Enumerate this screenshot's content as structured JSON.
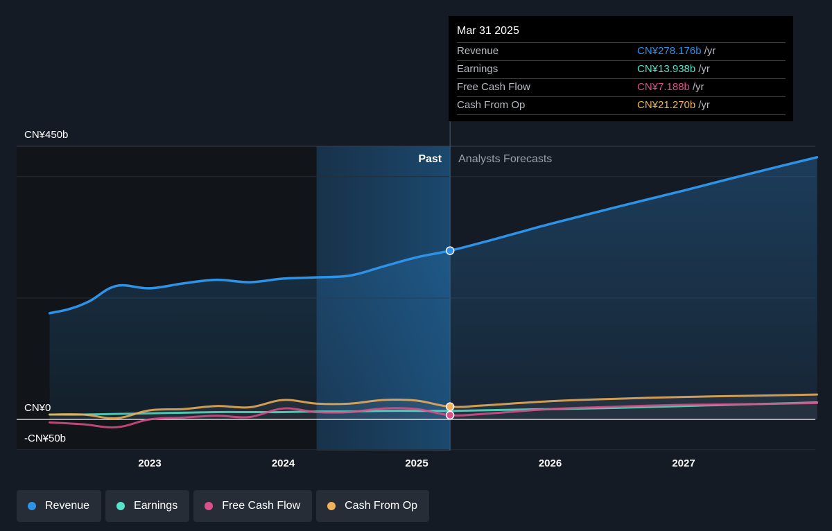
{
  "colors": {
    "background": "#151b24",
    "revenue": "#2e93e6",
    "earnings": "#56e3c8",
    "free_cash_flow": "#d9508a",
    "cash_from_op": "#f0b25a"
  },
  "chart_data": {
    "type": "line",
    "x_axis_ticks": [
      "2023",
      "2024",
      "2025",
      "2026",
      "2027"
    ],
    "y_axis_ticks": [
      "CN¥450b",
      "CN¥0",
      "-CN¥50b"
    ],
    "ylim": [
      -50,
      450
    ],
    "xlim": [
      2022.2,
      2028.0
    ],
    "divider_x": 2025.25,
    "forecast_start_band": 2024.25,
    "region_labels": {
      "past": "Past",
      "forecast": "Analysts Forecasts"
    },
    "grid": true,
    "legend_position": "bottom-left",
    "series": [
      {
        "name": "Revenue",
        "color_key": "revenue",
        "x": [
          2022.25,
          2022.4,
          2022.55,
          2022.75,
          2023.0,
          2023.25,
          2023.5,
          2023.75,
          2024.0,
          2024.25,
          2024.5,
          2024.75,
          2025.0,
          2025.25,
          2025.5,
          2025.75,
          2026.0,
          2026.5,
          2027.0,
          2027.5,
          2028.0
        ],
        "y": [
          175,
          182,
          195,
          220,
          216,
          224,
          230,
          226,
          232,
          234,
          237,
          252,
          267,
          278,
          292,
          307,
          322,
          350,
          377,
          405,
          432
        ]
      },
      {
        "name": "Earnings",
        "color_key": "earnings",
        "x": [
          2022.25,
          2022.5,
          2022.75,
          2023.0,
          2023.25,
          2023.5,
          2023.75,
          2024.0,
          2024.25,
          2024.5,
          2024.75,
          2025.0,
          2025.25,
          2025.5,
          2026.0,
          2026.5,
          2027.0,
          2027.5,
          2028.0
        ],
        "y": [
          8,
          8,
          9,
          10,
          11,
          12,
          12,
          12,
          13,
          13,
          14,
          14,
          14,
          15,
          17,
          19,
          22,
          25,
          28
        ]
      },
      {
        "name": "Free Cash Flow",
        "color_key": "free_cash_flow",
        "x": [
          2022.25,
          2022.5,
          2022.75,
          2023.0,
          2023.25,
          2023.5,
          2023.75,
          2024.0,
          2024.25,
          2024.5,
          2024.75,
          2025.0,
          2025.25,
          2025.5,
          2026.0,
          2026.5,
          2027.0,
          2027.5,
          2028.0
        ],
        "y": [
          -5,
          -8,
          -13,
          0,
          3,
          6,
          4,
          18,
          12,
          12,
          18,
          17,
          7,
          9,
          17,
          21,
          24,
          25,
          27
        ]
      },
      {
        "name": "Cash From Op",
        "color_key": "cash_from_op",
        "x": [
          2022.25,
          2022.5,
          2022.75,
          2023.0,
          2023.25,
          2023.5,
          2023.75,
          2024.0,
          2024.25,
          2024.5,
          2024.75,
          2025.0,
          2025.25,
          2025.5,
          2026.0,
          2026.5,
          2027.0,
          2027.5,
          2028.0
        ],
        "y": [
          8,
          8,
          2,
          15,
          17,
          22,
          20,
          32,
          26,
          26,
          32,
          31,
          21,
          23,
          30,
          34,
          37,
          39,
          41
        ]
      }
    ],
    "highlight_point": {
      "x": 2025.25
    }
  },
  "tooltip": {
    "date": "Mar 31 2025",
    "rows": [
      {
        "name": "Revenue",
        "value": "CN¥278.176b",
        "unit": "/yr",
        "color_key": "revenue"
      },
      {
        "name": "Earnings",
        "value": "CN¥13.938b",
        "unit": "/yr",
        "color_key": "earnings"
      },
      {
        "name": "Free Cash Flow",
        "value": "CN¥7.188b",
        "unit": "/yr",
        "color_key": "free_cash_flow"
      },
      {
        "name": "Cash From Op",
        "value": "CN¥21.270b",
        "unit": "/yr",
        "color_key": "cash_from_op"
      }
    ]
  },
  "legend": [
    {
      "label": "Revenue",
      "color_key": "revenue"
    },
    {
      "label": "Earnings",
      "color_key": "earnings"
    },
    {
      "label": "Free Cash Flow",
      "color_key": "free_cash_flow"
    },
    {
      "label": "Cash From Op",
      "color_key": "cash_from_op"
    }
  ]
}
